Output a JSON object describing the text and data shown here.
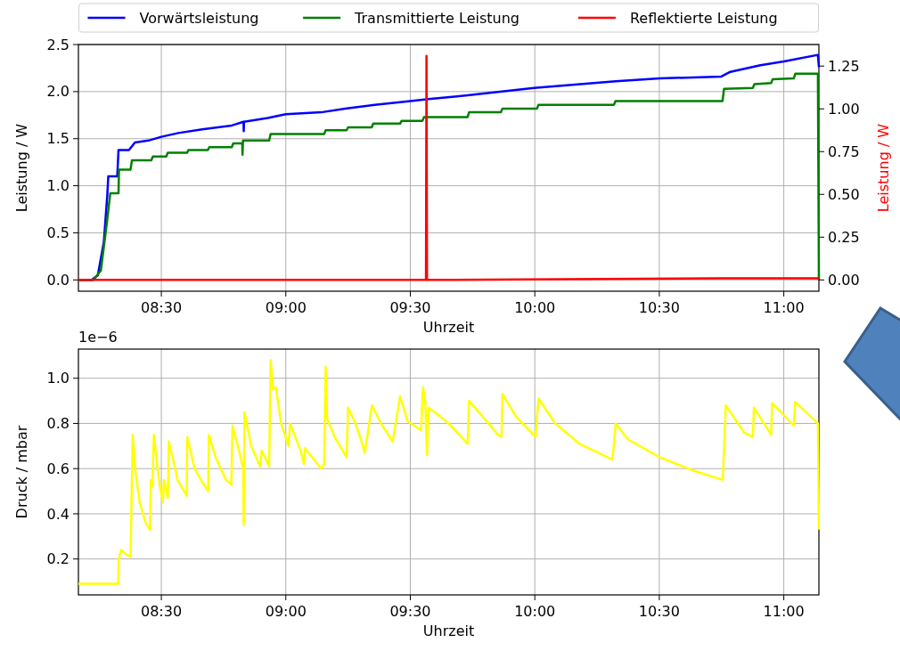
{
  "chart_data": [
    {
      "type": "line",
      "xlabel": "Uhrzeit",
      "ylabel": "Leistung / W",
      "y2label": "Leistung / W",
      "legend": "top",
      "grid": true,
      "xlim": [
        8.167,
        11.141
      ],
      "xticks": [
        {
          "value": 8.5,
          "label": "08:30"
        },
        {
          "value": 9,
          "label": "09:00"
        },
        {
          "value": 9.5,
          "label": "09:30"
        },
        {
          "value": 10,
          "label": "10:00"
        },
        {
          "value": 10.5,
          "label": "10:30"
        },
        {
          "value": 11,
          "label": "11:00"
        }
      ],
      "ylim": [
        -0.12,
        2.5
      ],
      "yticks": [
        {
          "value": 0,
          "label": "0.0"
        },
        {
          "value": 0.5,
          "label": "0.5"
        },
        {
          "value": 1,
          "label": "1.0"
        },
        {
          "value": 1.5,
          "label": "1.5"
        },
        {
          "value": 2,
          "label": "2.0"
        },
        {
          "value": 2.5,
          "label": "2.5"
        }
      ],
      "y2lim": [
        -0.066,
        1.376
      ],
      "y2ticks": [
        {
          "value": 0,
          "label": "0.00"
        },
        {
          "value": 0.25,
          "label": "0.25"
        },
        {
          "value": 0.5,
          "label": "0.50"
        },
        {
          "value": 0.75,
          "label": "0.75"
        },
        {
          "value": 1,
          "label": "1.00"
        },
        {
          "value": 1.25,
          "label": "1.25"
        }
      ],
      "series": [
        {
          "name": "Vorwärtsleistung",
          "color": "#0000ff",
          "x": [
            8.167,
            8.221,
            8.245,
            8.269,
            8.283,
            8.287,
            8.323,
            8.328,
            8.37,
            8.394,
            8.448,
            8.5,
            8.568,
            8.664,
            8.783,
            8.83,
            8.831,
            8.832,
            8.927,
            9.0,
            9.142,
            9.238,
            9.357,
            9.5,
            9.573,
            9.73,
            9.997,
            10.325,
            10.502,
            10.749,
            10.785,
            10.906,
            11.0,
            11.137,
            11.141
          ],
          "values": [
            0,
            0,
            0.05,
            0.4,
            0.9,
            1.1,
            1.1,
            1.38,
            1.38,
            1.46,
            1.48,
            1.52,
            1.56,
            1.6,
            1.64,
            1.68,
            1.58,
            1.68,
            1.72,
            1.76,
            1.78,
            1.82,
            1.86,
            1.9,
            1.92,
            1.96,
            2.04,
            2.11,
            2.14,
            2.16,
            2.21,
            2.28,
            2.32,
            2.39,
            2.26
          ]
        },
        {
          "name": "Transmittierte Leistung",
          "color": "#008000",
          "x": [
            8.167,
            8.228,
            8.257,
            8.281,
            8.295,
            8.328,
            8.33,
            8.376,
            8.382,
            8.46,
            8.466,
            8.52,
            8.526,
            8.603,
            8.609,
            8.687,
            8.693,
            8.783,
            8.789,
            8.825,
            8.826,
            8.828,
            8.933,
            8.939,
            9.154,
            9.16,
            9.244,
            9.25,
            9.345,
            9.351,
            9.459,
            9.465,
            9.549,
            9.555,
            9.73,
            9.736,
            9.864,
            9.87,
            10.009,
            10.015,
            10.318,
            10.324,
            10.754,
            10.76,
            10.876,
            10.882,
            10.949,
            10.955,
            11.04,
            11.046,
            11.137,
            11.141
          ],
          "values": [
            0,
            0,
            0.1,
            0.6,
            0.92,
            0.92,
            1.17,
            1.17,
            1.27,
            1.27,
            1.31,
            1.31,
            1.35,
            1.35,
            1.38,
            1.38,
            1.41,
            1.41,
            1.45,
            1.45,
            1.33,
            1.48,
            1.48,
            1.55,
            1.55,
            1.59,
            1.59,
            1.62,
            1.62,
            1.66,
            1.66,
            1.69,
            1.69,
            1.73,
            1.73,
            1.78,
            1.78,
            1.82,
            1.82,
            1.86,
            1.86,
            1.9,
            1.9,
            2.03,
            2.04,
            2.08,
            2.09,
            2.13,
            2.14,
            2.19,
            2.19,
            0
          ]
        },
        {
          "name": "Reflektierte Leistung",
          "color": "#ff0000",
          "axis": "y2",
          "x": [
            8.167,
            9.563,
            9.565,
            9.567,
            10.75,
            11.141
          ],
          "values": [
            0,
            0,
            1.31,
            0,
            0.01,
            0.01
          ]
        }
      ]
    },
    {
      "type": "line",
      "xlabel": "Uhrzeit",
      "ylabel": "Druck / mbar",
      "annotations": [
        "1e−6"
      ],
      "grid": true,
      "xlim": [
        8.167,
        11.141
      ],
      "xticks": [
        {
          "value": 8.5,
          "label": "08:30"
        },
        {
          "value": 9,
          "label": "09:00"
        },
        {
          "value": 9.5,
          "label": "09:30"
        },
        {
          "value": 10,
          "label": "10:00"
        },
        {
          "value": 10.5,
          "label": "10:30"
        },
        {
          "value": 11,
          "label": "11:00"
        }
      ],
      "ylim": [
        0.041,
        1.129
      ],
      "yticks": [
        0.2,
        0.4,
        0.6,
        0.8,
        {
          "value": 1,
          "label": "1.0"
        }
      ],
      "series": [
        {
          "color": "#ffff00",
          "x": [
            8.167,
            8.327,
            8.329,
            8.339,
            8.359,
            8.377,
            8.379,
            8.385,
            8.395,
            8.413,
            8.437,
            8.455,
            8.458,
            8.464,
            8.47,
            8.49,
            8.506,
            8.511,
            8.526,
            8.53,
            8.556,
            8.565,
            8.602,
            8.604,
            8.634,
            8.664,
            8.688,
            8.691,
            8.718,
            8.76,
            8.781,
            8.786,
            8.807,
            8.829,
            8.831,
            8.834,
            8.861,
            8.897,
            8.903,
            8.933,
            8.939,
            8.949,
            8.96,
            8.981,
            9.011,
            9.017,
            9.059,
            9.073,
            9.077,
            9.142,
            9.154,
            9.16,
            9.166,
            9.196,
            9.244,
            9.25,
            9.28,
            9.304,
            9.317,
            9.346,
            9.382,
            9.429,
            9.459,
            9.489,
            9.543,
            9.551,
            9.56,
            9.567,
            9.573,
            9.621,
            9.663,
            9.73,
            9.736,
            9.791,
            9.852,
            9.866,
            9.87,
            9.925,
            10.003,
            10.015,
            10.082,
            10.179,
            10.312,
            10.325,
            10.373,
            10.502,
            10.64,
            10.755,
            10.767,
            10.84,
            10.876,
            10.88,
            10.949,
            10.953,
            11.04,
            11.046,
            11.137,
            11.141
          ],
          "values": [
            0.09,
            0.09,
            0.2,
            0.24,
            0.22,
            0.21,
            0.38,
            0.75,
            0.6,
            0.45,
            0.36,
            0.33,
            0.55,
            0.52,
            0.75,
            0.55,
            0.45,
            0.55,
            0.47,
            0.72,
            0.6,
            0.55,
            0.48,
            0.74,
            0.6,
            0.54,
            0.5,
            0.75,
            0.65,
            0.55,
            0.53,
            0.79,
            0.7,
            0.6,
            0.35,
            0.85,
            0.7,
            0.61,
            0.68,
            0.61,
            1.08,
            0.95,
            0.96,
            0.8,
            0.7,
            0.8,
            0.68,
            0.62,
            0.69,
            0.6,
            0.62,
            1.05,
            0.82,
            0.74,
            0.65,
            0.87,
            0.8,
            0.72,
            0.67,
            0.88,
            0.8,
            0.72,
            0.92,
            0.81,
            0.77,
            0.96,
            0.9,
            0.66,
            0.87,
            0.83,
            0.79,
            0.71,
            0.9,
            0.83,
            0.75,
            0.74,
            0.93,
            0.83,
            0.74,
            0.91,
            0.8,
            0.71,
            0.64,
            0.8,
            0.73,
            0.65,
            0.59,
            0.55,
            0.88,
            0.76,
            0.74,
            0.87,
            0.75,
            0.89,
            0.79,
            0.895,
            0.8,
            0.33
          ]
        }
      ]
    }
  ]
}
